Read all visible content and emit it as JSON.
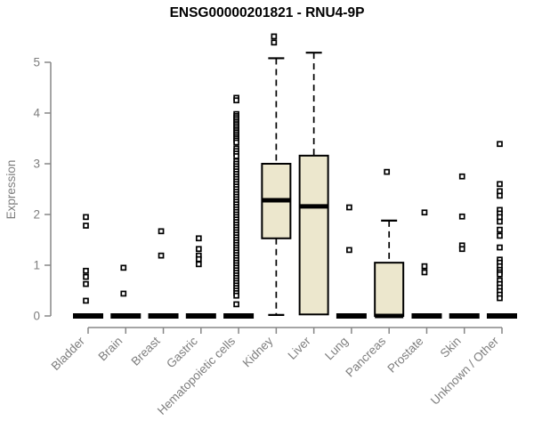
{
  "chart_data": {
    "type": "boxplot",
    "title": "ENSG00000201821 - RNU4-9P",
    "xlabel": "",
    "ylabel": "Expression",
    "ylim": [
      0,
      5.6
    ],
    "yticks": [
      0,
      1,
      2,
      3,
      4,
      5
    ],
    "grid": false,
    "legend": "none",
    "colors": {
      "box_fill": "#ece7cd",
      "box_stroke": "#000000",
      "axis": "#878787",
      "tick_label": "#7e7e7e",
      "title": "#000000"
    },
    "categories": [
      "Bladder",
      "Brain",
      "Breast",
      "Gastric",
      "Hematopoietic cells",
      "Kidney",
      "Liver",
      "Lung",
      "Pancreas",
      "Prostate",
      "Skin",
      "Unknown / Other"
    ],
    "series": [
      {
        "name": "Bladder",
        "q1": 0,
        "median": 0,
        "q3": 0,
        "whisker_low": null,
        "whisker_high": null,
        "outliers": [
          1.95,
          1.78,
          0.89,
          0.77,
          0.63,
          0.3
        ]
      },
      {
        "name": "Brain",
        "q1": 0,
        "median": 0,
        "q3": 0,
        "whisker_low": null,
        "whisker_high": null,
        "outliers": [
          0.95,
          0.44
        ]
      },
      {
        "name": "Breast",
        "q1": 0,
        "median": 0,
        "q3": 0,
        "whisker_low": null,
        "whisker_high": null,
        "outliers": [
          1.67,
          1.19
        ]
      },
      {
        "name": "Gastric",
        "q1": 0,
        "median": 0,
        "q3": 0,
        "whisker_low": null,
        "whisker_high": null,
        "outliers": [
          1.53,
          1.32,
          1.19,
          1.12,
          1.02
        ]
      },
      {
        "name": "Hematopoietic cells",
        "q1": 0,
        "median": 0,
        "q3": 0,
        "whisker_low": null,
        "whisker_high": null,
        "outliers": [
          4.3,
          4.25,
          3.98,
          3.94,
          3.9,
          3.86,
          3.82,
          3.78,
          3.74,
          3.7,
          3.66,
          3.62,
          3.58,
          3.54,
          3.5,
          3.46,
          3.42,
          3.3,
          3.25,
          3.2,
          3.15,
          3.05,
          3.0,
          2.95,
          2.9,
          2.85,
          2.8,
          2.75,
          2.7,
          2.65,
          2.6,
          2.55,
          2.5,
          2.45,
          2.4,
          2.35,
          2.3,
          2.25,
          2.2,
          2.15,
          2.1,
          2.05,
          2.0,
          1.95,
          1.9,
          1.85,
          1.8,
          1.75,
          1.7,
          1.65,
          1.6,
          1.55,
          1.5,
          1.45,
          1.4,
          1.35,
          1.3,
          1.25,
          1.2,
          1.15,
          1.1,
          1.05,
          1.0,
          0.95,
          0.9,
          0.85,
          0.8,
          0.75,
          0.7,
          0.65,
          0.6,
          0.55,
          0.5,
          0.45,
          0.4,
          0.23
        ]
      },
      {
        "name": "Kidney",
        "q1": 1.53,
        "median": 2.28,
        "q3": 3.0,
        "whisker_low": 0.02,
        "whisker_high": 5.08,
        "outliers": [
          5.51,
          5.39
        ]
      },
      {
        "name": "Liver",
        "q1": 0.03,
        "median": 2.16,
        "q3": 3.16,
        "whisker_low": null,
        "whisker_high": 5.19,
        "outliers": []
      },
      {
        "name": "Lung",
        "q1": 0,
        "median": 0,
        "q3": 0,
        "whisker_low": null,
        "whisker_high": null,
        "outliers": [
          2.14,
          1.3
        ]
      },
      {
        "name": "Pancreas",
        "q1": 0,
        "median": 0,
        "q3": 1.05,
        "whisker_low": null,
        "whisker_high": 1.88,
        "outliers": [
          2.84
        ]
      },
      {
        "name": "Prostate",
        "q1": 0,
        "median": 0,
        "q3": 0,
        "whisker_low": null,
        "whisker_high": null,
        "outliers": [
          2.04,
          0.98,
          0.86
        ]
      },
      {
        "name": "Skin",
        "q1": 0,
        "median": 0,
        "q3": 0,
        "whisker_low": null,
        "whisker_high": null,
        "outliers": [
          2.75,
          1.96,
          1.39,
          1.32
        ]
      },
      {
        "name": "Unknown / Other",
        "q1": 0,
        "median": 0,
        "q3": 0,
        "whisker_low": null,
        "whisker_high": null,
        "outliers": [
          3.39,
          2.6,
          2.46,
          2.37,
          2.09,
          2.02,
          1.95,
          1.86,
          1.7,
          1.58,
          1.35,
          1.11,
          1.05,
          0.98,
          0.91,
          0.86,
          0.82,
          0.7,
          0.63,
          0.56,
          0.49,
          0.42,
          0.35
        ]
      }
    ]
  }
}
